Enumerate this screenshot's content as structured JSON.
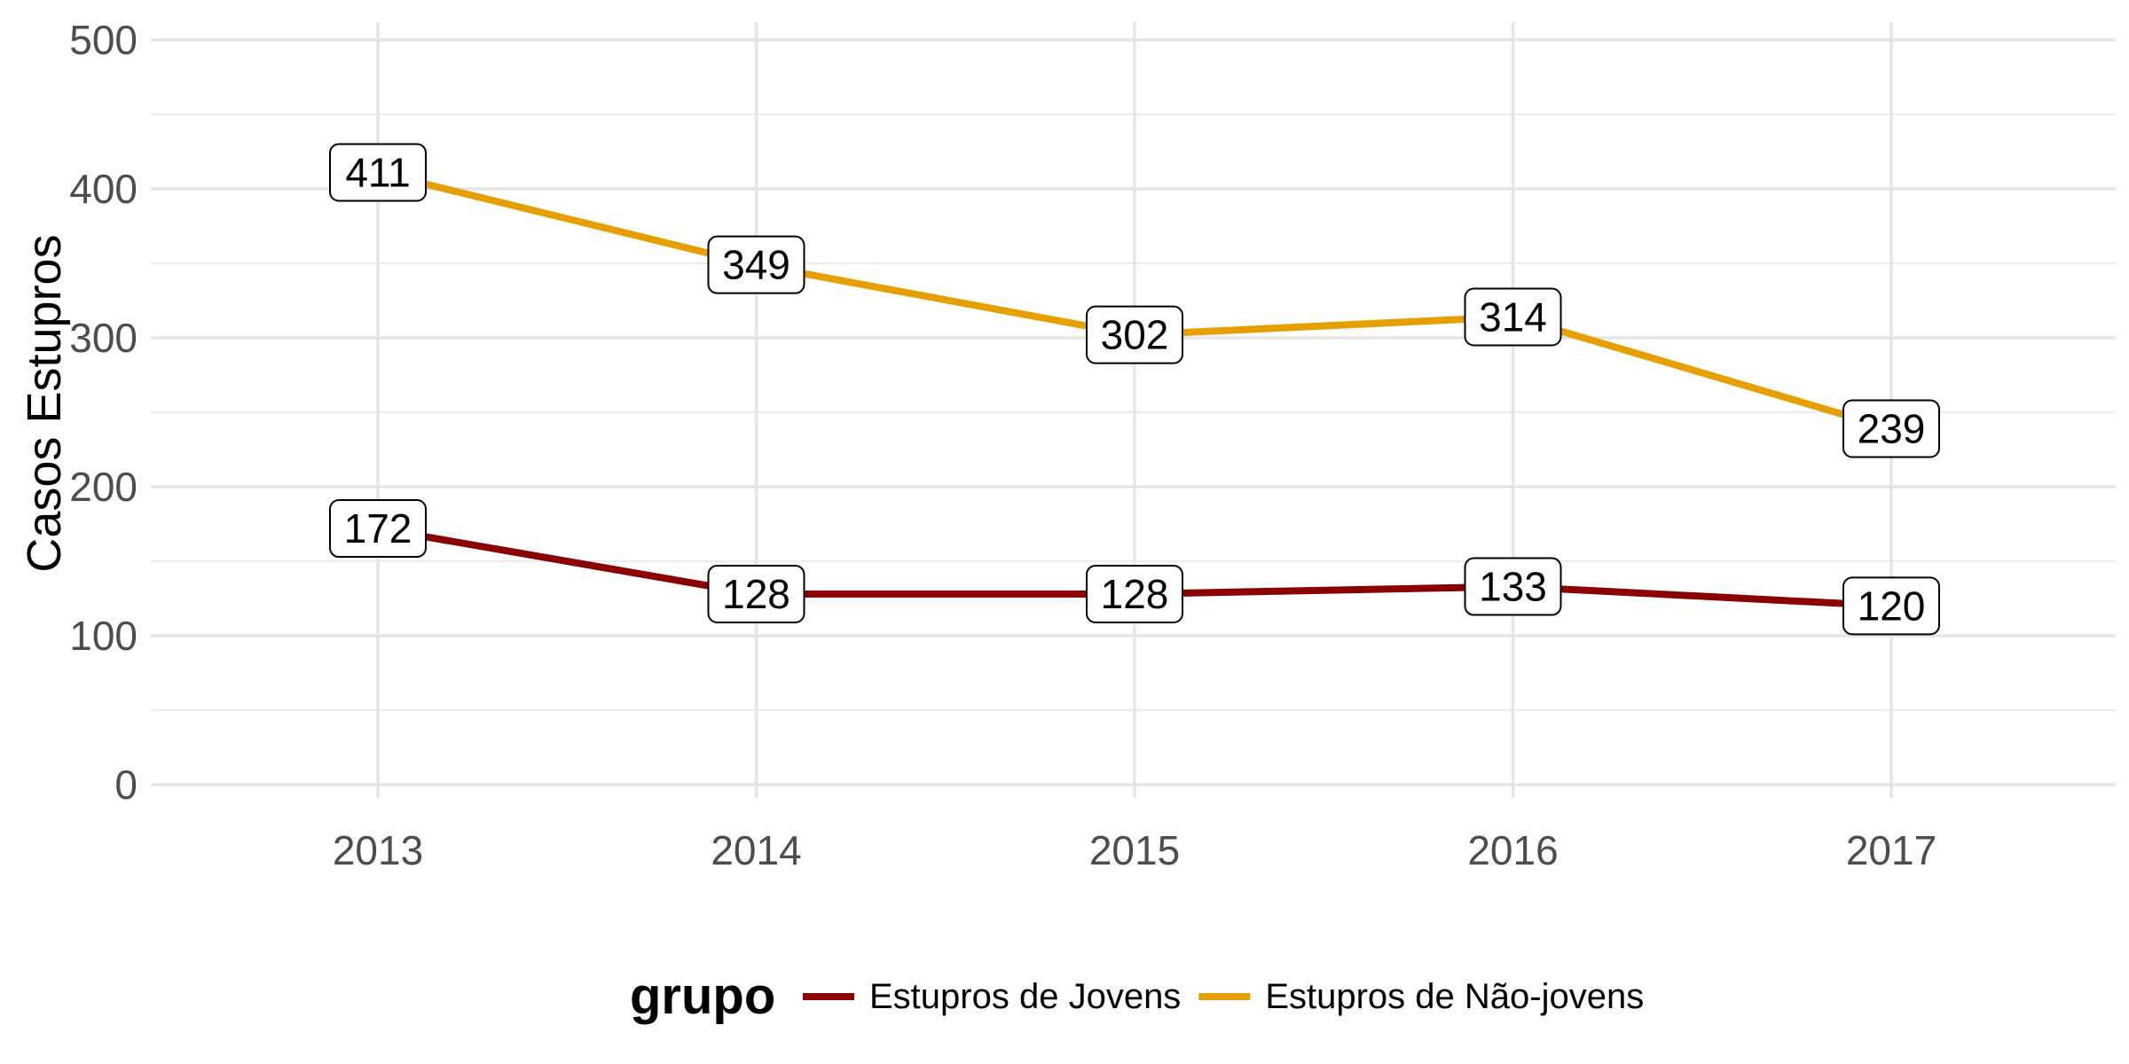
{
  "chart_data": {
    "type": "line",
    "x": [
      "2013",
      "2014",
      "2015",
      "2016",
      "2017"
    ],
    "series": [
      {
        "name": "Estupros de Jovens",
        "values": [
          172,
          128,
          128,
          133,
          120
        ],
        "color": "#8B0000"
      },
      {
        "name": "Estupros de Não-jovens",
        "values": [
          411,
          349,
          302,
          314,
          239
        ],
        "color": "#E69F00"
      }
    ],
    "ylabel": "Casos Estupros",
    "xlabel": "",
    "ylim": [
      0,
      500
    ],
    "yticks": [
      0,
      100,
      200,
      300,
      400,
      500
    ],
    "grid": true,
    "legend": {
      "title": "grupo",
      "position": "bottom"
    },
    "data_labels": true
  }
}
